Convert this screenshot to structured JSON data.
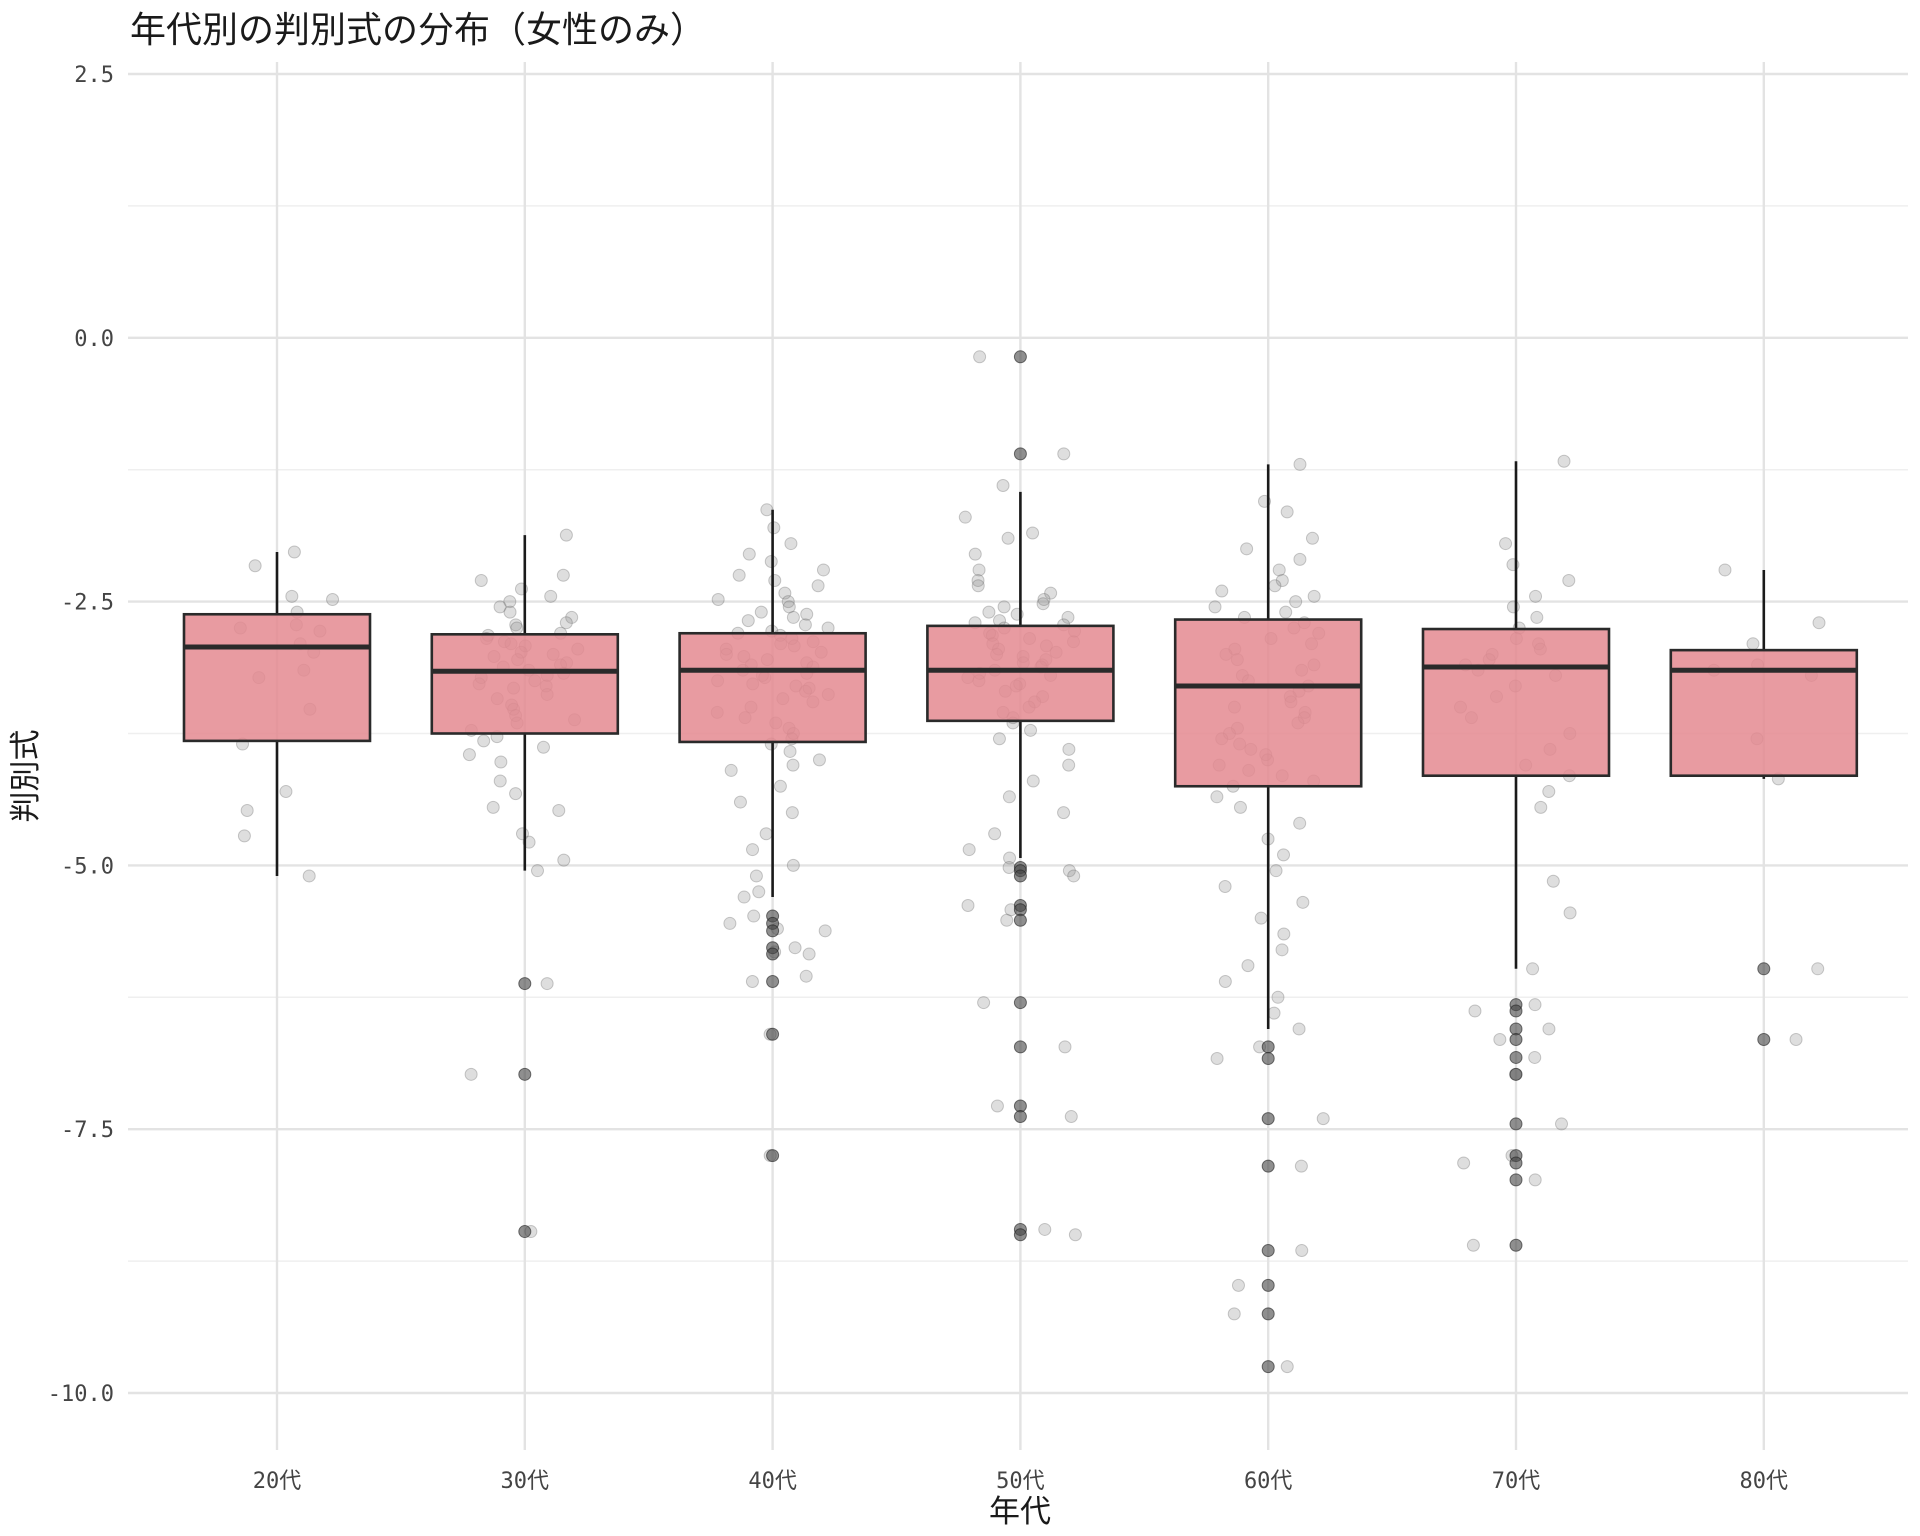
{
  "chart_data": {
    "type": "box",
    "title": "年代別の判別式の分布（女性のみ）",
    "xlabel": "年代",
    "ylabel": "判別式",
    "ylim": [
      -10.6,
      2.5
    ],
    "yticks": [
      2.5,
      0.0,
      -2.5,
      -5.0,
      -7.5,
      -10.0
    ],
    "ytick_labels": [
      "2.5",
      "0.0",
      "-2.5",
      "-5.0",
      "-7.5",
      "-10.0"
    ],
    "grid": true,
    "categories": [
      "20代",
      "30代",
      "40代",
      "50代",
      "60代",
      "70代",
      "80代"
    ],
    "boxes": [
      {
        "category": "20代",
        "q1": -3.82,
        "median": -2.93,
        "q3": -2.62,
        "whisker_low": -5.1,
        "whisker_high": -2.03,
        "outliers": []
      },
      {
        "category": "30代",
        "q1": -3.75,
        "median": -3.16,
        "q3": -2.81,
        "whisker_low": -5.05,
        "whisker_high": -1.87,
        "outliers": [
          -6.12,
          -6.98,
          -8.47
        ]
      },
      {
        "category": "40代",
        "q1": -3.83,
        "median": -3.15,
        "q3": -2.8,
        "whisker_low": -5.3,
        "whisker_high": -1.63,
        "outliers": [
          -5.48,
          -5.55,
          -5.62,
          -5.78,
          -5.84,
          -6.1,
          -6.6,
          -7.75
        ]
      },
      {
        "category": "50代",
        "q1": -3.63,
        "median": -3.15,
        "q3": -2.73,
        "whisker_low": -4.93,
        "whisker_high": -1.46,
        "outliers": [
          -0.18,
          -1.1,
          -5.02,
          -5.05,
          -5.1,
          -5.38,
          -5.42,
          -5.52,
          -6.3,
          -6.72,
          -7.28,
          -7.38,
          -8.45,
          -8.5
        ]
      },
      {
        "category": "60代",
        "q1": -4.25,
        "median": -3.3,
        "q3": -2.67,
        "whisker_low": -6.55,
        "whisker_high": -1.2,
        "outliers": [
          -6.72,
          -6.83,
          -7.4,
          -7.85,
          -8.65,
          -8.98,
          -9.25,
          -9.75
        ]
      },
      {
        "category": "70代",
        "q1": -4.15,
        "median": -3.12,
        "q3": -2.76,
        "whisker_low": -5.98,
        "whisker_high": -1.17,
        "outliers": [
          -6.32,
          -6.38,
          -6.55,
          -6.65,
          -6.82,
          -6.98,
          -7.45,
          -7.75,
          -7.82,
          -7.98,
          -8.6
        ]
      },
      {
        "category": "80代",
        "q1": -4.15,
        "median": -3.15,
        "q3": -2.96,
        "whisker_low": -4.18,
        "whisker_high": -2.2,
        "outliers": [
          -5.98,
          -6.65
        ]
      }
    ],
    "points": [
      {
        "category": "20代",
        "values": [
          -2.03,
          -2.16,
          -2.45,
          -2.48,
          -2.6,
          -2.72,
          -2.75,
          -2.78,
          -2.9,
          -2.98,
          -3.15,
          -3.22,
          -3.52,
          -3.85,
          -4.3,
          -4.48,
          -4.72,
          -5.1
        ]
      },
      {
        "category": "30代",
        "values": [
          -1.87,
          -2.25,
          -2.3,
          -2.38,
          -2.45,
          -2.5,
          -2.55,
          -2.6,
          -2.65,
          -2.7,
          -2.72,
          -2.75,
          -2.8,
          -2.82,
          -2.85,
          -2.88,
          -2.9,
          -2.92,
          -2.95,
          -2.98,
          -3.0,
          -3.02,
          -3.05,
          -3.08,
          -3.1,
          -3.12,
          -3.15,
          -3.18,
          -3.2,
          -3.22,
          -3.25,
          -3.28,
          -3.3,
          -3.32,
          -3.38,
          -3.42,
          -3.48,
          -3.52,
          -3.58,
          -3.62,
          -3.65,
          -3.72,
          -3.78,
          -3.82,
          -3.88,
          -3.95,
          -4.02,
          -4.2,
          -4.32,
          -4.45,
          -4.48,
          -4.7,
          -4.78,
          -4.95,
          -5.05,
          -6.12,
          -6.98,
          -8.47
        ]
      },
      {
        "category": "40代",
        "values": [
          -1.63,
          -1.8,
          -1.95,
          -2.05,
          -2.12,
          -2.2,
          -2.25,
          -2.3,
          -2.35,
          -2.42,
          -2.48,
          -2.5,
          -2.55,
          -2.6,
          -2.62,
          -2.65,
          -2.68,
          -2.72,
          -2.75,
          -2.78,
          -2.8,
          -2.82,
          -2.85,
          -2.88,
          -2.9,
          -2.92,
          -2.95,
          -2.98,
          -3.0,
          -3.02,
          -3.05,
          -3.08,
          -3.1,
          -3.12,
          -3.15,
          -3.18,
          -3.2,
          -3.22,
          -3.25,
          -3.28,
          -3.3,
          -3.32,
          -3.35,
          -3.38,
          -3.42,
          -3.45,
          -3.5,
          -3.55,
          -3.6,
          -3.65,
          -3.7,
          -3.75,
          -3.8,
          -3.85,
          -3.92,
          -4.0,
          -4.05,
          -4.1,
          -4.25,
          -4.4,
          -4.5,
          -4.7,
          -4.85,
          -5.0,
          -5.1,
          -5.25,
          -5.3,
          -5.48,
          -5.55,
          -5.6,
          -5.62,
          -5.78,
          -5.82,
          -5.84,
          -6.05,
          -6.1,
          -6.6,
          -7.75
        ]
      },
      {
        "category": "50代",
        "values": [
          -0.18,
          -1.1,
          -1.4,
          -1.7,
          -1.85,
          -1.9,
          -2.05,
          -2.2,
          -2.3,
          -2.35,
          -2.42,
          -2.48,
          -2.52,
          -2.55,
          -2.6,
          -2.62,
          -2.65,
          -2.68,
          -2.7,
          -2.72,
          -2.75,
          -2.78,
          -2.8,
          -2.82,
          -2.85,
          -2.88,
          -2.9,
          -2.92,
          -2.95,
          -2.98,
          -3.0,
          -3.02,
          -3.05,
          -3.08,
          -3.1,
          -3.12,
          -3.15,
          -3.18,
          -3.2,
          -3.22,
          -3.25,
          -3.28,
          -3.3,
          -3.35,
          -3.4,
          -3.45,
          -3.5,
          -3.55,
          -3.6,
          -3.65,
          -3.72,
          -3.8,
          -3.9,
          -4.05,
          -4.2,
          -4.35,
          -4.5,
          -4.7,
          -4.85,
          -4.93,
          -5.02,
          -5.05,
          -5.1,
          -5.38,
          -5.42,
          -5.52,
          -6.3,
          -6.72,
          -7.28,
          -7.38,
          -8.45,
          -8.5
        ]
      },
      {
        "category": "60代",
        "values": [
          -1.2,
          -1.55,
          -1.65,
          -1.9,
          -2.0,
          -2.1,
          -2.2,
          -2.3,
          -2.35,
          -2.4,
          -2.45,
          -2.5,
          -2.55,
          -2.6,
          -2.65,
          -2.7,
          -2.75,
          -2.8,
          -2.85,
          -2.9,
          -2.95,
          -3.0,
          -3.05,
          -3.1,
          -3.15,
          -3.2,
          -3.25,
          -3.3,
          -3.35,
          -3.4,
          -3.45,
          -3.5,
          -3.55,
          -3.6,
          -3.65,
          -3.7,
          -3.75,
          -3.8,
          -3.85,
          -3.9,
          -3.95,
          -4.0,
          -4.05,
          -4.1,
          -4.15,
          -4.2,
          -4.25,
          -4.35,
          -4.45,
          -4.6,
          -4.75,
          -4.9,
          -5.05,
          -5.2,
          -5.35,
          -5.5,
          -5.65,
          -5.8,
          -5.95,
          -6.1,
          -6.25,
          -6.4,
          -6.55,
          -6.72,
          -6.83,
          -7.4,
          -7.85,
          -8.65,
          -8.98,
          -9.25,
          -9.75
        ]
      },
      {
        "category": "70代",
        "values": [
          -1.17,
          -1.95,
          -2.15,
          -2.3,
          -2.45,
          -2.55,
          -2.65,
          -2.75,
          -2.85,
          -2.9,
          -2.95,
          -3.0,
          -3.05,
          -3.1,
          -3.15,
          -3.2,
          -3.3,
          -3.4,
          -3.5,
          -3.6,
          -3.75,
          -3.9,
          -4.05,
          -4.15,
          -4.3,
          -4.45,
          -5.15,
          -5.45,
          -5.98,
          -6.32,
          -6.38,
          -6.55,
          -6.65,
          -6.82,
          -6.98,
          -7.45,
          -7.75,
          -7.82,
          -7.98,
          -8.6
        ]
      },
      {
        "category": "80代",
        "values": [
          -2.2,
          -2.7,
          -2.9,
          -3.1,
          -3.15,
          -3.2,
          -3.8,
          -4.18,
          -5.98,
          -6.65
        ]
      }
    ]
  }
}
